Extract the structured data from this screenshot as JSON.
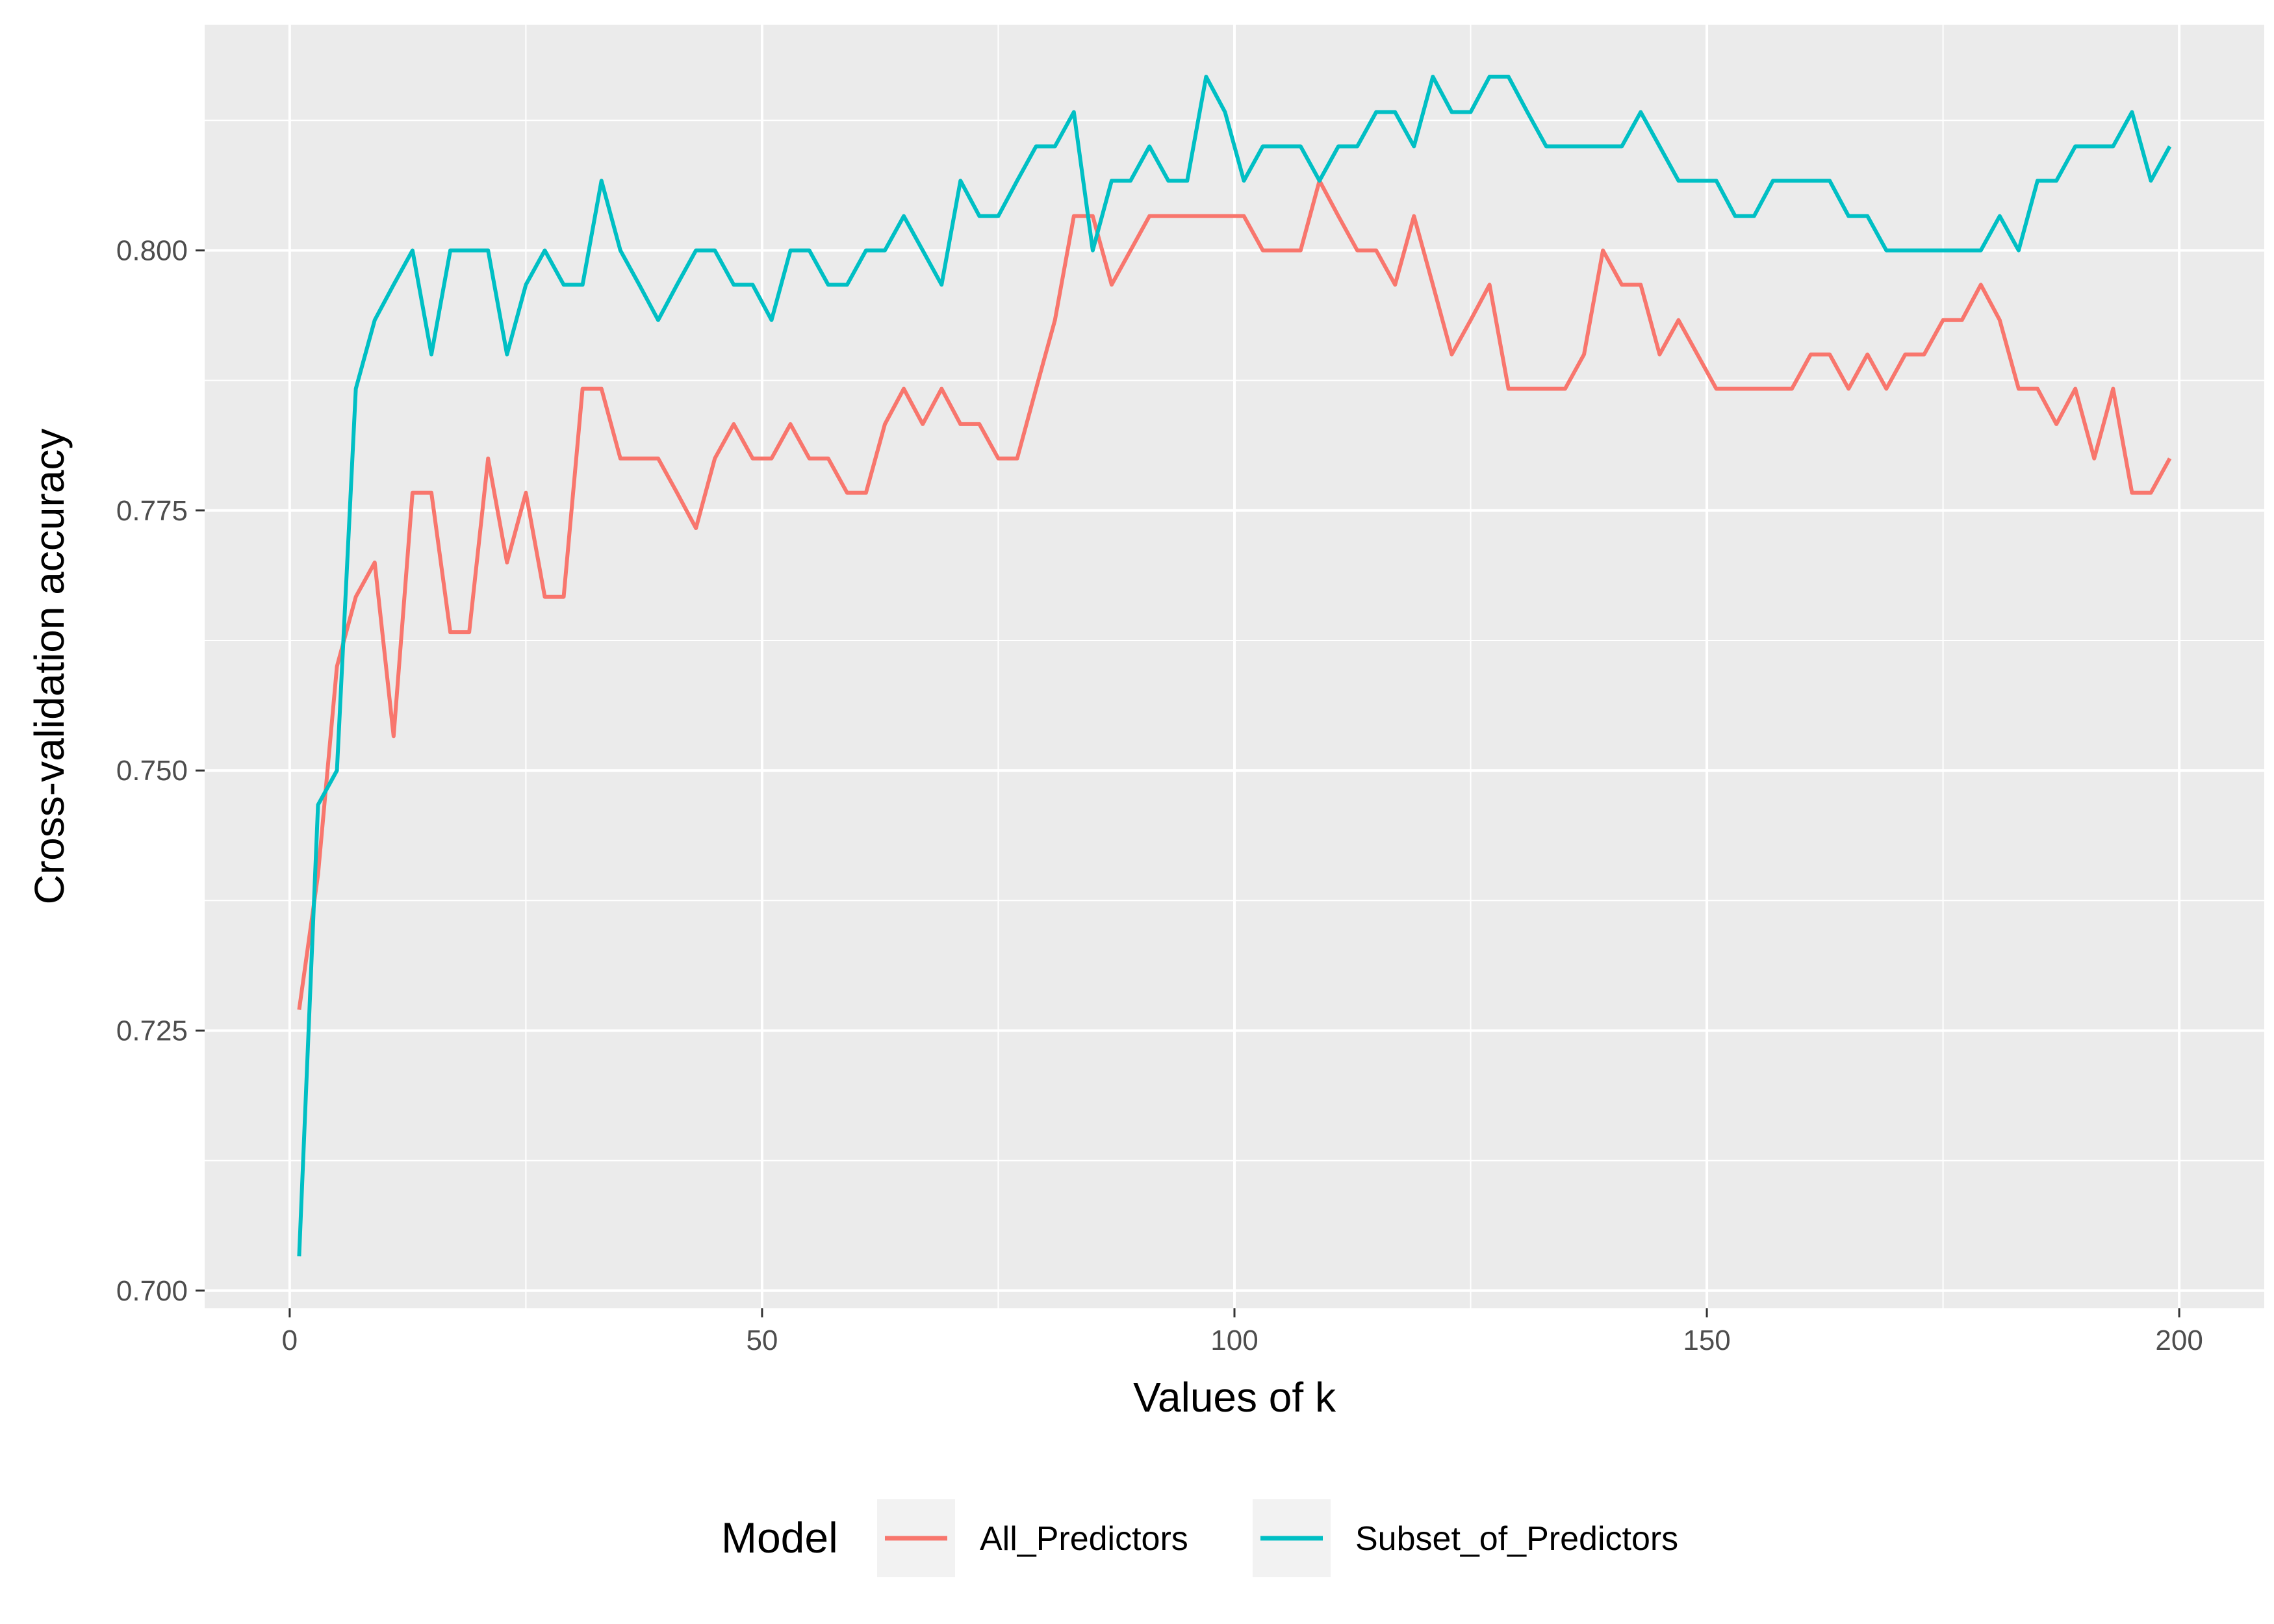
{
  "chart_data": {
    "type": "line",
    "xlabel": "Values of k",
    "ylabel": "Cross-validation accuracy",
    "xlim": [
      -9,
      209
    ],
    "ylim": [
      0.6983,
      0.8217
    ],
    "xticks": [
      0,
      50,
      100,
      150,
      200
    ],
    "xtick_labels": [
      "0",
      "50",
      "100",
      "150",
      "200"
    ],
    "yticks": [
      0.7,
      0.725,
      0.75,
      0.775,
      0.8
    ],
    "ytick_labels": [
      "0.700",
      "0.725",
      "0.750",
      "0.775",
      "0.800"
    ],
    "grid": true,
    "legend": {
      "title": "Model",
      "position": "bottom"
    },
    "x": [
      1,
      3,
      5,
      7,
      9,
      11,
      13,
      15,
      17,
      19,
      21,
      23,
      25,
      27,
      29,
      31,
      33,
      35,
      37,
      39,
      41,
      43,
      45,
      47,
      49,
      51,
      53,
      55,
      57,
      59,
      61,
      63,
      65,
      67,
      69,
      71,
      73,
      75,
      77,
      79,
      81,
      83,
      85,
      87,
      89,
      91,
      93,
      95,
      97,
      99,
      101,
      103,
      105,
      107,
      109,
      111,
      113,
      115,
      117,
      119,
      121,
      123,
      125,
      127,
      129,
      131,
      133,
      135,
      137,
      139,
      141,
      143,
      145,
      147,
      149,
      151,
      153,
      155,
      157,
      159,
      161,
      163,
      165,
      167,
      169,
      171,
      173,
      175,
      177,
      179,
      181,
      183,
      185,
      187,
      189,
      191,
      193,
      195,
      197,
      199
    ],
    "series": [
      {
        "name": "All_Predictors",
        "color": "#F8766D",
        "values": [
          0.727,
          0.74,
          0.76,
          0.7667,
          0.77,
          0.7533,
          0.7767,
          0.7767,
          0.7633,
          0.7633,
          0.78,
          0.77,
          0.7767,
          0.7667,
          0.7667,
          0.7867,
          0.7867,
          0.78,
          0.78,
          0.78,
          0.7767,
          0.7733,
          0.78,
          0.7833,
          0.78,
          0.78,
          0.7833,
          0.78,
          0.78,
          0.7767,
          0.7767,
          0.7833,
          0.7867,
          0.7833,
          0.7867,
          0.7833,
          0.7833,
          0.78,
          0.78,
          0.7867,
          0.7933,
          0.8033,
          0.8033,
          0.7967,
          0.8,
          0.8033,
          0.8033,
          0.8033,
          0.8033,
          0.8033,
          0.8033,
          0.8,
          0.8,
          0.8,
          0.8067,
          0.8033,
          0.8,
          0.8,
          0.7967,
          0.8033,
          0.7967,
          0.79,
          0.7933,
          0.7967,
          0.7867,
          0.7867,
          0.7867,
          0.7867,
          0.79,
          0.8,
          0.7967,
          0.7967,
          0.79,
          0.7933,
          0.79,
          0.7867,
          0.7867,
          0.7867,
          0.7867,
          0.7867,
          0.79,
          0.79,
          0.7867,
          0.79,
          0.7867,
          0.79,
          0.79,
          0.7933,
          0.7933,
          0.7967,
          0.7933,
          0.7867,
          0.7867,
          0.7833,
          0.7867,
          0.78,
          0.7867,
          0.7767,
          0.7767,
          0.78
        ]
      },
      {
        "name": "Subset_of_Predictors",
        "color": "#00BFC4",
        "values": [
          0.7033,
          0.7467,
          0.75,
          0.7867,
          0.7933,
          0.7967,
          0.8,
          0.79,
          0.8,
          0.8,
          0.8,
          0.79,
          0.7967,
          0.8,
          0.7967,
          0.7967,
          0.8067,
          0.8,
          0.7967,
          0.7933,
          0.7967,
          0.8,
          0.8,
          0.7967,
          0.7967,
          0.7933,
          0.8,
          0.8,
          0.7967,
          0.7967,
          0.8,
          0.8,
          0.8033,
          0.8,
          0.7967,
          0.8067,
          0.8033,
          0.8033,
          0.8067,
          0.81,
          0.81,
          0.8133,
          0.8,
          0.8067,
          0.8067,
          0.81,
          0.8067,
          0.8067,
          0.8167,
          0.8133,
          0.8067,
          0.81,
          0.81,
          0.81,
          0.8067,
          0.81,
          0.81,
          0.8133,
          0.8133,
          0.81,
          0.8167,
          0.8133,
          0.8133,
          0.8167,
          0.8167,
          0.8133,
          0.81,
          0.81,
          0.81,
          0.81,
          0.81,
          0.8133,
          0.81,
          0.8067,
          0.8067,
          0.8067,
          0.8033,
          0.8033,
          0.8067,
          0.8067,
          0.8067,
          0.8067,
          0.8033,
          0.8033,
          0.8,
          0.8,
          0.8,
          0.8,
          0.8,
          0.8,
          0.8033,
          0.8,
          0.8067,
          0.8067,
          0.81,
          0.81,
          0.81,
          0.8133,
          0.8067,
          0.81
        ]
      }
    ]
  }
}
